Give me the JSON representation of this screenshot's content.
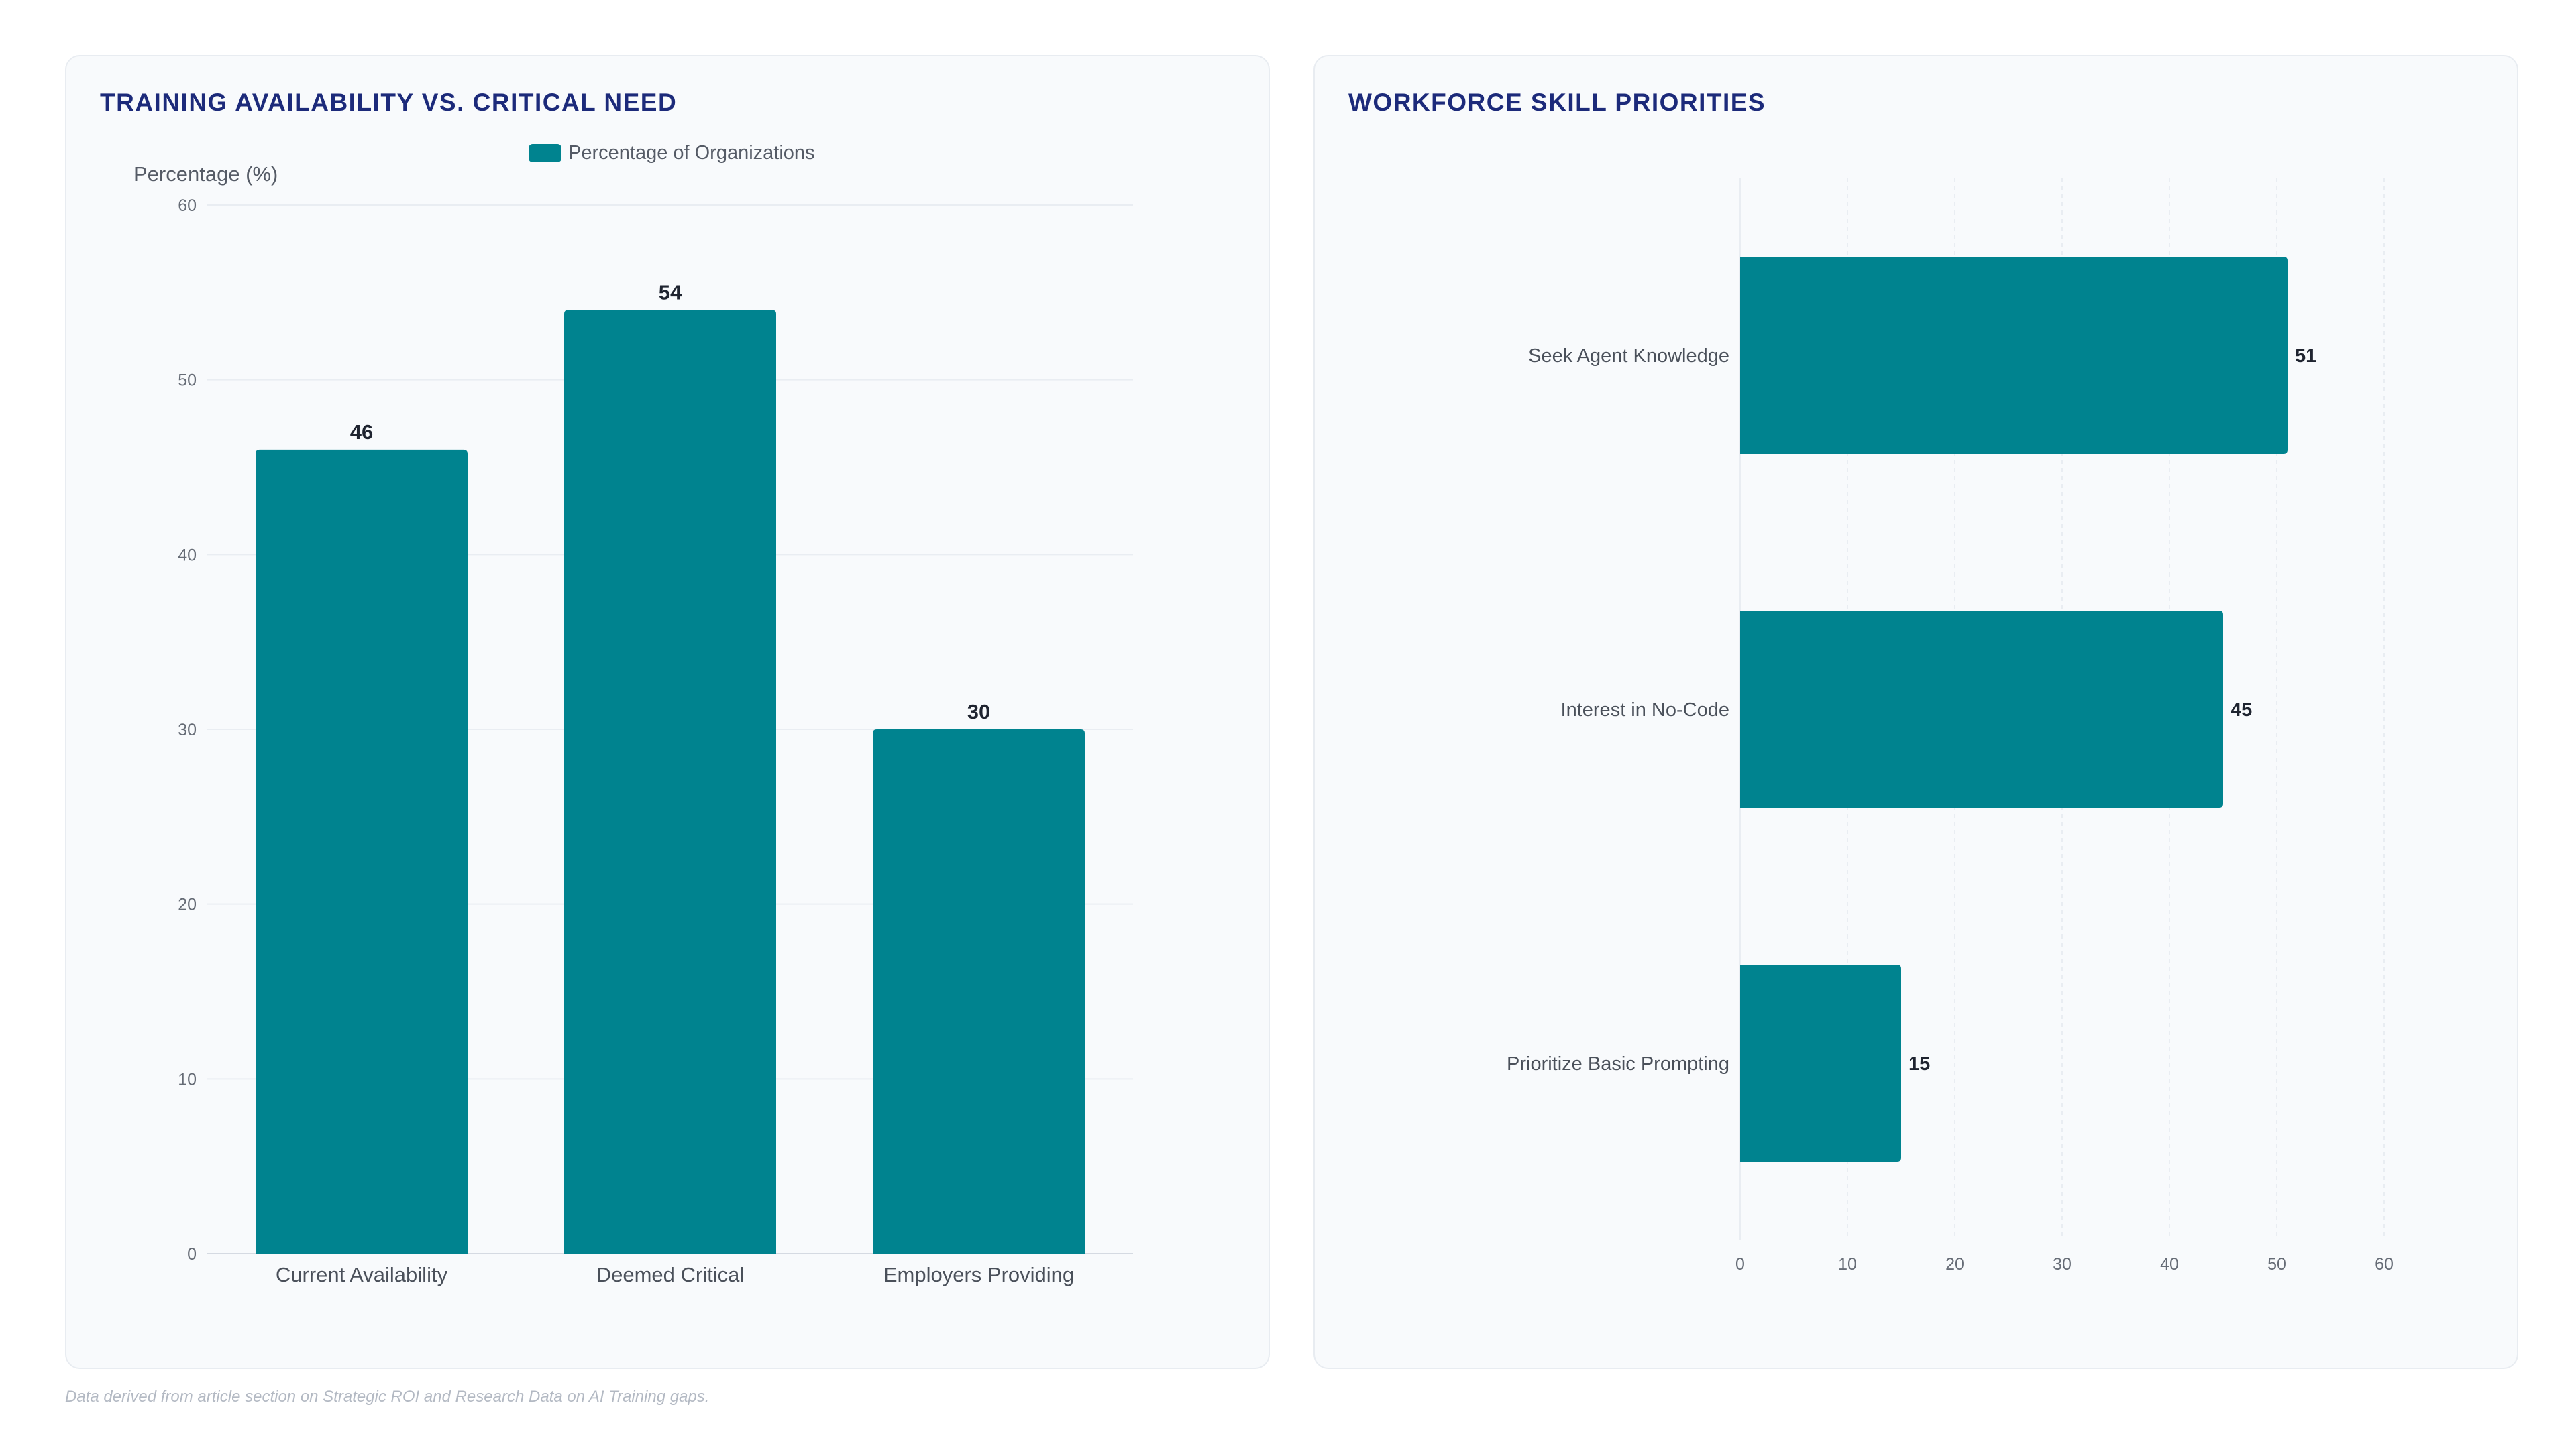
{
  "footnote": "Data derived from article section on Strategic ROI and Research Data on AI Training gaps.",
  "colors": {
    "bar": "#00838f",
    "title": "#1c2a7a",
    "grid": "#e9edf2"
  },
  "chart_data": [
    {
      "type": "bar",
      "title": "TRAINING AVAILABILITY VS. CRITICAL NEED",
      "ylabel": "Percentage (%)",
      "legend": [
        "Percentage of Organizations"
      ],
      "legend_position": "top-center",
      "categories": [
        "Current Availability",
        "Deemed Critical",
        "Employers Providing"
      ],
      "series": [
        {
          "name": "Percentage of Organizations",
          "values": [
            46,
            54,
            30
          ]
        }
      ],
      "ylim": [
        0,
        60
      ],
      "yticks": [
        0,
        10,
        20,
        30,
        40,
        50,
        60
      ],
      "grid": true,
      "data_labels": true
    },
    {
      "type": "bar",
      "orientation": "horizontal",
      "title": "WORKFORCE SKILL PRIORITIES",
      "categories": [
        "Seek Agent Knowledge",
        "Interest in No-Code",
        "Prioritize Basic Prompting"
      ],
      "values": [
        51,
        45,
        15
      ],
      "xlim": [
        0,
        60
      ],
      "xticks": [
        0,
        10,
        20,
        30,
        40,
        50,
        60
      ],
      "grid": true,
      "data_labels": true
    }
  ]
}
